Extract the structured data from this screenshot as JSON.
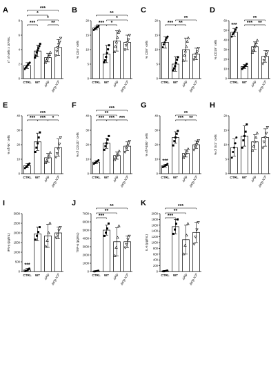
{
  "chart_data": [
    {
      "panel": "A",
      "type": "bar",
      "categories": [
        "CTRL",
        "WT",
        "ΔKlp",
        "ΔKlp ICP"
      ],
      "values": [
        1.8,
        3.8,
        2.9,
        4.3
      ],
      "errors": [
        0.4,
        0.8,
        0.6,
        1.1
      ],
      "points": [
        [
          1.3,
          1.5,
          1.6,
          1.8,
          1.9,
          2.1,
          2.2
        ],
        [
          2.9,
          3.2,
          3.6,
          3.9,
          4.2,
          4.5,
          4.8
        ],
        [
          2.2,
          2.5,
          2.8,
          3.0,
          3.3,
          3.6
        ],
        [
          3.2,
          3.8,
          4.3,
          4.7,
          5.1,
          5.6
        ]
      ],
      "ylabel": "n° of cells x 10⁶/mL",
      "ylim": [
        0,
        8
      ],
      "yticks": [
        "0",
        "2",
        "4",
        "6",
        "8"
      ],
      "sig": [
        {
          "from": 0,
          "to": 1,
          "level": 0,
          "label": "***"
        },
        {
          "from": 2,
          "to": 3,
          "level": 0,
          "label": "**"
        },
        {
          "from": 1,
          "to": 3,
          "level": 1,
          "label": "*"
        },
        {
          "from": 0,
          "to": 2,
          "level": 2,
          "label": "*"
        },
        {
          "from": 0,
          "to": 3,
          "level": 3,
          "label": "***"
        }
      ]
    },
    {
      "panel": "B",
      "type": "bar",
      "categories": [
        "CTRL",
        "WT",
        "ΔKlp",
        "ΔKlp ICP"
      ],
      "values": [
        17.5,
        8.5,
        13.0,
        12.5
      ],
      "errors": [
        0.6,
        3.0,
        3.5,
        2.5
      ],
      "points": [
        [
          16.8,
          17.1,
          17.4,
          17.6,
          17.9,
          18.2
        ],
        [
          5.6,
          6.3,
          7.5,
          8.8,
          10.1,
          11.5
        ],
        [
          9.2,
          11.0,
          12.6,
          14.2,
          15.9,
          16.5
        ],
        [
          10.0,
          11.5,
          12.4,
          13.5,
          15.0
        ]
      ],
      "ylabel": "% CD4⁺ cells",
      "ylim": [
        0,
        20
      ],
      "yticks": [
        "0",
        "5",
        "10",
        "15",
        "20"
      ],
      "sig": [
        {
          "from": 0,
          "to": 1,
          "level": 0,
          "label": "***"
        },
        {
          "from": 1,
          "to": 2,
          "level": 0,
          "label": "*"
        },
        {
          "from": 1,
          "to": 3,
          "level": 1,
          "label": "*"
        },
        {
          "from": 0,
          "to": 3,
          "level": 2,
          "label": "**"
        }
      ]
    },
    {
      "panel": "C",
      "type": "bar",
      "categories": [
        "CTRL",
        "WT",
        "ΔKlp",
        "ΔKlp ICP"
      ],
      "values": [
        12.5,
        5.0,
        10.0,
        8.5
      ],
      "errors": [
        2.0,
        2.5,
        4.0,
        2.0
      ],
      "points": [
        [
          10.8,
          11.8,
          12.5,
          13.3,
          14.0,
          14.5
        ],
        [
          2.8,
          3.5,
          4.3,
          5.4,
          6.5,
          7.4
        ],
        [
          6.2,
          8.0,
          9.4,
          11.0,
          12.8,
          14.0
        ],
        [
          6.6,
          7.5,
          8.5,
          9.3,
          10.5
        ]
      ],
      "ylabel": "% CD8⁺ cells",
      "ylim": [
        0,
        20
      ],
      "yticks": [
        "0",
        "5",
        "10",
        "15",
        "20"
      ],
      "sig": [
        {
          "from": 0,
          "to": 1,
          "level": 0,
          "label": "***"
        },
        {
          "from": 1,
          "to": 2,
          "level": 0,
          "label": "**"
        },
        {
          "from": 1,
          "to": 3,
          "level": 1,
          "label": "**"
        }
      ]
    },
    {
      "panel": "D",
      "type": "bar",
      "categories": [
        "CTRL",
        "WT",
        "ΔKlp",
        "ΔKlp ICP"
      ],
      "values": [
        48.0,
        12.5,
        33.0,
        23.0
      ],
      "errors": [
        4.0,
        2.0,
        5.0,
        6.0
      ],
      "points": [
        [
          43.5,
          45.8,
          47.2,
          48.6,
          50.5,
          52.8
        ],
        [
          10.0,
          11.3,
          12.4,
          13.4,
          15.2
        ],
        [
          27.0,
          29.5,
          32.6,
          34.8,
          36.8,
          39.5
        ],
        [
          15.5,
          19.0,
          22.4,
          25.0,
          28.0
        ]
      ],
      "ylabel": "% CD19⁺ cells",
      "ylim": [
        0,
        60
      ],
      "yticks": [
        "0",
        "10",
        "20",
        "30",
        "40",
        "50",
        "60"
      ],
      "sig": [
        {
          "from": 0,
          "to": 0,
          "level": -1,
          "label": "***"
        },
        {
          "from": 1,
          "to": 2,
          "level": 0,
          "label": "***"
        },
        {
          "from": 2,
          "to": 3,
          "level": 0,
          "label": "**"
        },
        {
          "from": 1,
          "to": 3,
          "level": 1,
          "label": "**"
        }
      ]
    },
    {
      "panel": "E",
      "type": "bar",
      "categories": [
        "CTRL",
        "WT",
        "ΔKlp",
        "ΔKlp ICP"
      ],
      "values": [
        5.5,
        22.0,
        11.0,
        18.0
      ],
      "errors": [
        1.5,
        6.0,
        3.0,
        6.0
      ],
      "points": [
        [
          3.8,
          4.5,
          5.3,
          6.2,
          7.0
        ],
        [
          15.0,
          18.0,
          21.0,
          25.0,
          28.5
        ],
        [
          7.5,
          9.0,
          11.0,
          12.5,
          14.5
        ],
        [
          11.5,
          14.0,
          17.0,
          20.5,
          25.0
        ]
      ],
      "ylabel": "% of Nk⁺ cells",
      "ylim": [
        0,
        40
      ],
      "yticks": [
        "0",
        "10",
        "20",
        "30",
        "40"
      ],
      "sig": [
        {
          "from": 0,
          "to": 1,
          "level": 0,
          "label": "***"
        },
        {
          "from": 1,
          "to": 2,
          "level": 0,
          "label": "***"
        },
        {
          "from": 2,
          "to": 3,
          "level": 0,
          "label": "*"
        },
        {
          "from": 0,
          "to": 3,
          "level": 1,
          "label": "***"
        }
      ]
    },
    {
      "panel": "F",
      "type": "bar",
      "categories": [
        "CTRL",
        "WT",
        "ΔKlp",
        "ΔKlp ICP"
      ],
      "values": [
        8.0,
        21.0,
        12.5,
        19.0
      ],
      "errors": [
        1.0,
        3.5,
        2.5,
        3.0
      ],
      "points": [
        [
          6.8,
          7.4,
          8.0,
          8.6,
          9.3
        ],
        [
          16.5,
          19.0,
          21.0,
          23.5,
          26.0
        ],
        [
          9.5,
          11.0,
          12.5,
          13.8,
          15.5
        ],
        [
          15.0,
          17.5,
          19.0,
          20.5,
          22.5
        ]
      ],
      "ylabel": "% of CD11b⁺ cells",
      "ylim": [
        0,
        40
      ],
      "yticks": [
        "0",
        "10",
        "20",
        "30",
        "40"
      ],
      "sig": [
        {
          "from": 0,
          "to": 1,
          "level": 0,
          "label": "***"
        },
        {
          "from": 1,
          "to": 2,
          "level": 0,
          "label": "***"
        },
        {
          "from": 2,
          "to": 3,
          "level": 0,
          "label": "***"
        },
        {
          "from": 0,
          "to": 2,
          "level": 1,
          "label": "**"
        },
        {
          "from": 0,
          "to": 3,
          "level": 2,
          "label": "***"
        }
      ]
    },
    {
      "panel": "G",
      "type": "bar",
      "categories": [
        "CTRL",
        "WT",
        "ΔKlp",
        "ΔKlp ICP"
      ],
      "values": [
        5.5,
        25.0,
        14.0,
        20.0
      ],
      "errors": [
        1.0,
        4.0,
        2.5,
        2.5
      ],
      "points": [
        [
          4.5,
          5.0,
          5.5,
          6.0,
          6.7
        ],
        [
          19.5,
          22.5,
          25.0,
          27.5,
          29.5
        ],
        [
          11.0,
          12.5,
          14.0,
          15.5,
          17.0
        ],
        [
          16.5,
          18.5,
          20.0,
          21.5,
          23.0
        ]
      ],
      "ylabel": "% of F4/80⁺ cells",
      "ylim": [
        0,
        40
      ],
      "yticks": [
        "0",
        "10",
        "20",
        "30",
        "40"
      ],
      "sig": [
        {
          "from": 0,
          "to": 0,
          "level": -1,
          "label": "***"
        },
        {
          "from": 1,
          "to": 2,
          "level": 0,
          "label": "***"
        },
        {
          "from": 2,
          "to": 3,
          "level": 0,
          "label": "**"
        },
        {
          "from": 1,
          "to": 3,
          "level": 1,
          "label": "**"
        }
      ]
    },
    {
      "panel": "H",
      "type": "bar",
      "categories": [
        "CTRL",
        "WT",
        "ΔKlp",
        "ΔKlp ICP"
      ],
      "values": [
        9.0,
        13.0,
        11.0,
        12.5
      ],
      "errors": [
        3.0,
        3.5,
        2.5,
        3.0
      ],
      "points": [
        [
          5.5,
          7.5,
          9.0,
          10.5,
          12.5
        ],
        [
          9.0,
          11.5,
          13.0,
          14.5,
          17.0
        ],
        [
          8.0,
          9.5,
          11.0,
          12.5,
          14.0
        ],
        [
          9.0,
          11.0,
          12.5,
          14.0,
          16.0
        ]
      ],
      "ylabel": "% of Gr1⁺ cells",
      "ylim": [
        0,
        20
      ],
      "yticks": [
        "0",
        "5",
        "10",
        "15",
        "20"
      ],
      "sig": []
    },
    {
      "panel": "I",
      "type": "bar",
      "categories": [
        "CTRL",
        "WT",
        "ΔKlp",
        "ΔKlp ICP"
      ],
      "values": [
        80,
        1950,
        1850,
        2000
      ],
      "errors": [
        80,
        350,
        600,
        300
      ],
      "points": [
        [
          20,
          40,
          90,
          150
        ],
        [
          1650,
          1850,
          2050,
          2300
        ],
        [
          1300,
          1600,
          2000,
          2500
        ],
        [
          1750,
          1900,
          2150,
          2300
        ]
      ],
      "ylabel": "IFN-γ (pg/mL)",
      "ylim": [
        0,
        3000
      ],
      "yticks": [
        "0",
        "500",
        "1000",
        "1500",
        "2000",
        "2500",
        "3000"
      ],
      "sig": [
        {
          "from": 0,
          "to": 0,
          "level": -1,
          "label": "***"
        }
      ]
    },
    {
      "panel": "J",
      "type": "bar",
      "categories": [
        "CTRL",
        "WT",
        "ΔKlp",
        "ΔKlp ICP"
      ],
      "values": [
        50,
        5000,
        3600,
        3600
      ],
      "errors": [
        40,
        600,
        1700,
        700
      ],
      "points": [
        [
          10,
          30,
          60,
          100
        ],
        [
          4300,
          4700,
          5200,
          5800
        ],
        [
          1900,
          2900,
          4100,
          5500
        ],
        [
          2900,
          3300,
          3900,
          4300
        ]
      ],
      "ylabel": "TNF-α (pg/mL)",
      "ylim": [
        0,
        7000
      ],
      "yticks": [
        "0",
        "1000",
        "2000",
        "3000",
        "4000",
        "5000",
        "6000",
        "7000"
      ],
      "sig": [
        {
          "from": 0,
          "to": 1,
          "level": 0,
          "label": "***"
        },
        {
          "from": 0,
          "to": 2,
          "level": 1,
          "label": "**"
        },
        {
          "from": 0,
          "to": 3,
          "level": 2,
          "label": "**"
        }
      ]
    },
    {
      "panel": "K",
      "type": "bar",
      "categories": [
        "CTRL",
        "WT",
        "ΔKlp",
        "ΔKlp ICP"
      ],
      "values": [
        20,
        1550,
        1100,
        1350
      ],
      "errors": [
        20,
        250,
        500,
        350
      ],
      "points": [
        [
          5,
          10,
          20,
          35
        ],
        [
          1300,
          1450,
          1650,
          1800
        ],
        [
          600,
          900,
          1250,
          1650
        ],
        [
          950,
          1200,
          1450,
          1700
        ]
      ],
      "ylabel": "IL-6 (pg/mL)",
      "ylim": [
        0,
        2000
      ],
      "yticks": [
        "0",
        "200",
        "400",
        "600",
        "800",
        "1000",
        "1200",
        "1400",
        "1600",
        "1800",
        "2000"
      ],
      "sig": [
        {
          "from": 0,
          "to": 1,
          "level": 0,
          "label": "***"
        },
        {
          "from": 0,
          "to": 2,
          "level": 1,
          "label": "**"
        },
        {
          "from": 0,
          "to": 3,
          "level": 2,
          "label": "***"
        }
      ]
    }
  ],
  "markers": [
    "circle-filled",
    "square-filled",
    "triangle-open",
    "triangle-down-open"
  ]
}
